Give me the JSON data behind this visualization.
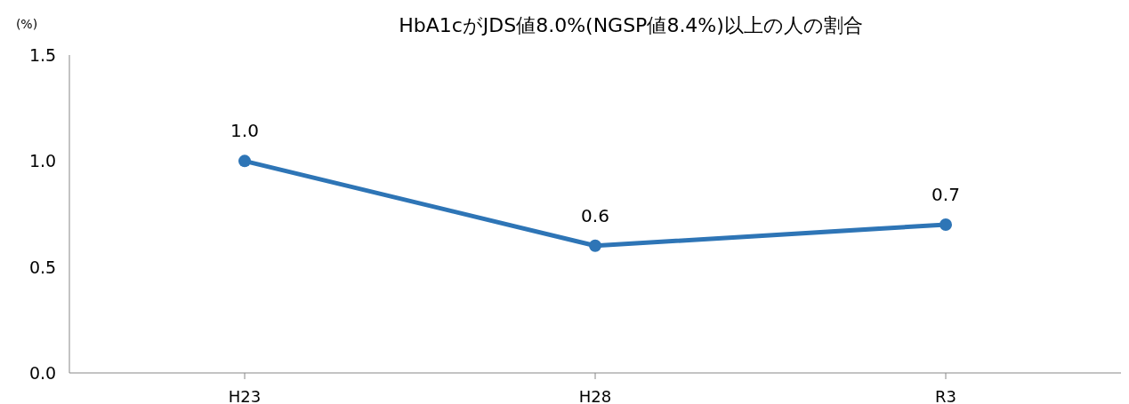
{
  "chart_data": {
    "type": "line",
    "title": "HbA1cがJDS値8.0%(NGSP値8.4%)以上の人の割合",
    "ylabel": "(%)",
    "categories": [
      "H23",
      "H28",
      "R3"
    ],
    "series": [
      {
        "color": "#2e75b6",
        "values": [
          1.0,
          0.6,
          0.7
        ],
        "value_labels": [
          "1.0",
          "0.6",
          "0.7"
        ]
      }
    ],
    "ylim": [
      0,
      1.5
    ],
    "yticks": [
      {
        "value": 0,
        "label": "0.0"
      },
      0.5,
      {
        "value": 1,
        "label": "1.0"
      },
      1.5
    ],
    "marker": "circle",
    "grid": false
  }
}
